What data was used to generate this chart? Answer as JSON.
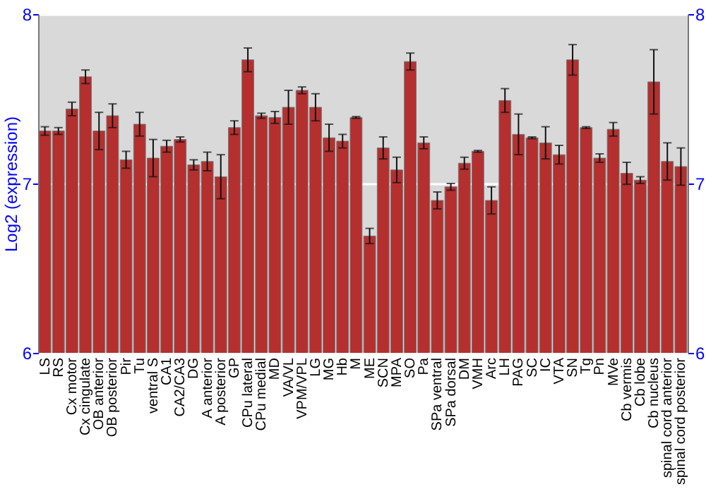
{
  "chart_data": {
    "type": "bar",
    "ylabel": "Log2 (expression)",
    "categories": [
      "LS",
      "RS",
      "Cx motor",
      "Cx cingulate",
      "OB anterior",
      "OB posterior",
      "Pir",
      "Tu",
      "ventral S",
      "CA1",
      "CA2/CA3",
      "DG",
      "A anterior",
      "A posterior",
      "GP",
      "CPu lateral",
      "CPu medial",
      "MD",
      "VA/VL",
      "VPM/VPL",
      "LG",
      "MG",
      "Hb",
      "M",
      "ME",
      "SCN",
      "MPA",
      "SO",
      "Pa",
      "SPa ventral",
      "SPa dorsal",
      "DM",
      "VMH",
      "Arc",
      "LH",
      "PAG",
      "SC",
      "IC",
      "VTA",
      "SN",
      "Tg",
      "Pn",
      "MVe",
      "Cb vermis",
      "Cb lobe",
      "Cb nucleus",
      "spinal cord anterior",
      "spinal cord posterior"
    ],
    "values": [
      7.31,
      7.31,
      7.44,
      7.63,
      7.31,
      7.4,
      7.14,
      7.35,
      7.15,
      7.22,
      7.26,
      7.11,
      7.13,
      7.04,
      7.33,
      7.73,
      7.4,
      7.39,
      7.45,
      7.55,
      7.45,
      7.27,
      7.25,
      7.39,
      6.69,
      7.21,
      7.08,
      7.72,
      7.24,
      6.9,
      6.98,
      7.12,
      7.19,
      6.9,
      7.49,
      7.29,
      7.27,
      7.24,
      7.17,
      7.73,
      7.33,
      7.15,
      7.32,
      7.06,
      7.02,
      7.6,
      7.13,
      7.1
    ],
    "errors": [
      0.025,
      0.02,
      0.04,
      0.04,
      0.11,
      0.07,
      0.05,
      0.07,
      0.11,
      0.035,
      0.015,
      0.03,
      0.055,
      0.13,
      0.04,
      0.07,
      0.015,
      0.035,
      0.1,
      0.02,
      0.08,
      0.08,
      0.04,
      0.005,
      0.045,
      0.065,
      0.075,
      0.05,
      0.035,
      0.05,
      0.02,
      0.035,
      0.005,
      0.08,
      0.07,
      0.12,
      0.005,
      0.095,
      0.055,
      0.09,
      0.005,
      0.025,
      0.04,
      0.065,
      0.02,
      0.19,
      0.11,
      0.11
    ],
    "color": "#b52f2f",
    "ylim": [
      6,
      8
    ],
    "yticks": [
      6,
      7,
      8
    ],
    "y2lim": [
      6,
      8
    ],
    "y2ticks": [
      6,
      7,
      8
    ],
    "grid": "y"
  }
}
